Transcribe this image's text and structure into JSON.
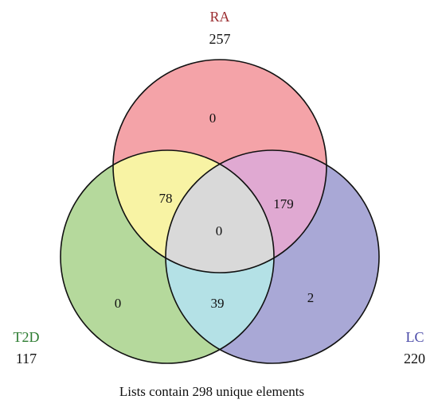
{
  "sets": {
    "ra": {
      "label": "RA",
      "count": "257",
      "label_color": "#9b2d30"
    },
    "t2d": {
      "label": "T2D",
      "count": "117",
      "label_color": "#2e7d32"
    },
    "lc": {
      "label": "LC",
      "count": "220",
      "label_color": "#4a4aa8"
    }
  },
  "regions": {
    "ra_only": "0",
    "t2d_only": "0",
    "lc_only": "2",
    "ra_t2d": "78",
    "ra_lc": "179",
    "t2d_lc": "39",
    "all_three": "0"
  },
  "caption": "Lists contain 298 unique elements",
  "colors": {
    "ra_fill": "#f4a3a8",
    "t2d_fill": "#b5d99c",
    "lc_fill": "#a9a8d6",
    "ra_t2d_fill": "#f8f3a4",
    "ra_lc_fill": "#e0a9d2",
    "t2d_lc_fill": "#b4e1e6",
    "all_three_fill": "#d9d9d9",
    "outline": "#111111"
  }
}
